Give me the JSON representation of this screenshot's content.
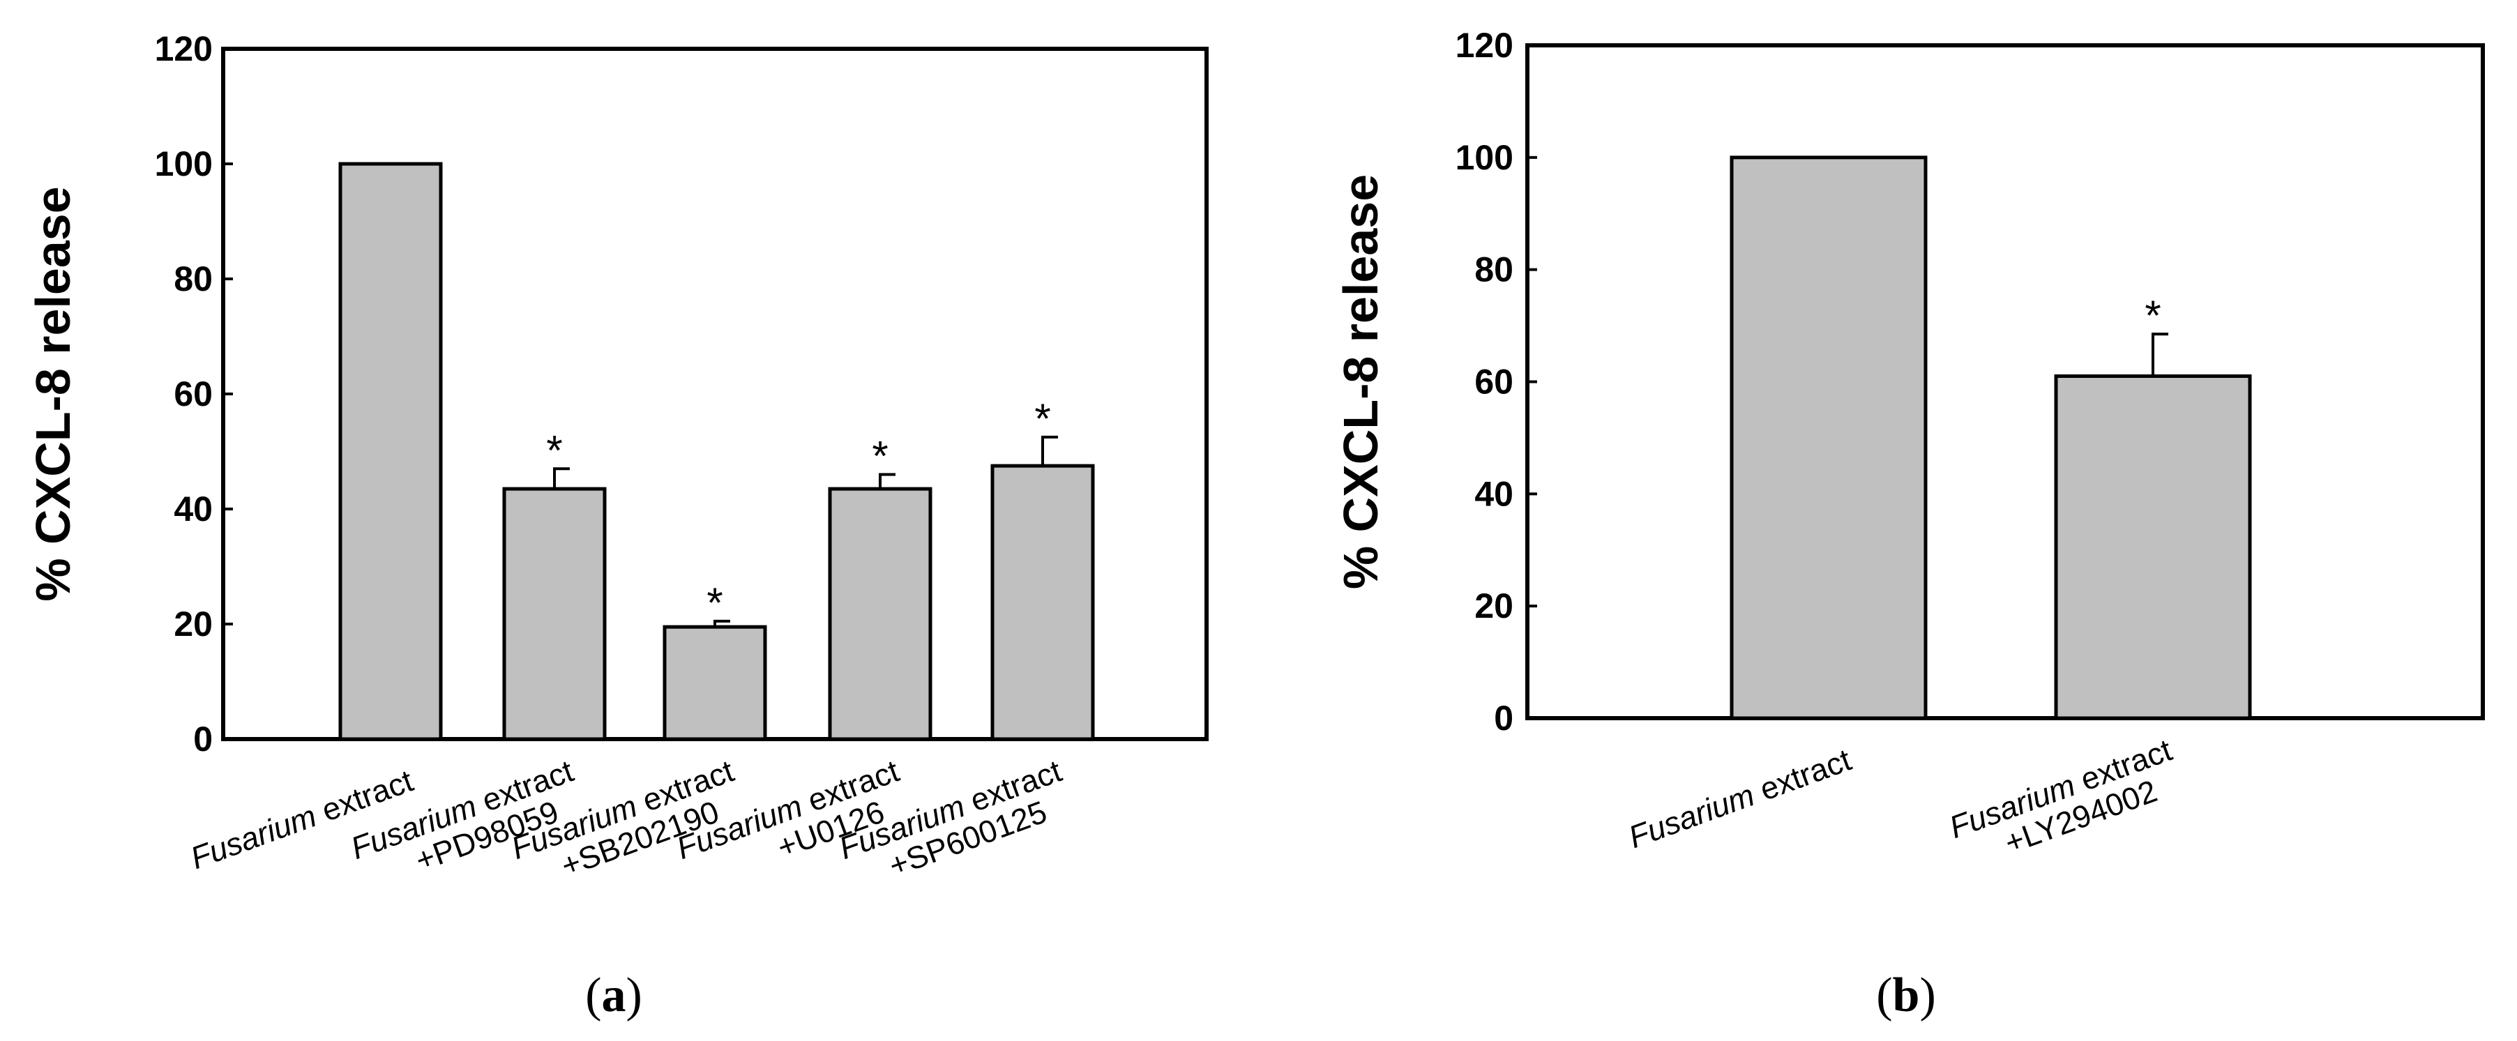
{
  "chart_data": [
    {
      "type": "bar",
      "panel_label": "(a)",
      "panel_letter": "a",
      "ylabel": "% CXCL-8 release",
      "ylim": [
        0,
        120
      ],
      "yticks": [
        0,
        20,
        40,
        60,
        80,
        100,
        120
      ],
      "categories": [
        {
          "italic": "Fusarium",
          "rest": " extract",
          "line2": ""
        },
        {
          "italic": "Fusarium",
          "rest": " extract",
          "line2": "+PD98059"
        },
        {
          "italic": "Fusarium",
          "rest": " extract",
          "line2": "+SB202190"
        },
        {
          "italic": "Fusarium",
          "rest": " extract",
          "line2": "+U0126"
        },
        {
          "italic": "Fusarium",
          "rest": " extract",
          "line2": "+SP600125"
        }
      ],
      "values": [
        100,
        43.5,
        19.5,
        43.5,
        47.5
      ],
      "errors": [
        0,
        3.5,
        1.0,
        2.5,
        5.0
      ],
      "significance": [
        "",
        "*",
        "*",
        "*",
        "*"
      ],
      "bar_color": "#c0c0c0",
      "grid": false
    },
    {
      "type": "bar",
      "panel_label": "(b)",
      "panel_letter": "b",
      "ylabel": "% CXCL-8 release",
      "ylim": [
        0,
        120
      ],
      "yticks": [
        0,
        20,
        40,
        60,
        80,
        100,
        120
      ],
      "categories": [
        {
          "italic": "Fusarium",
          "rest": " extract",
          "line2": ""
        },
        {
          "italic": "Fusarium",
          "rest": " extract",
          "line2": "+LY294002"
        }
      ],
      "values": [
        100,
        61
      ],
      "errors": [
        0,
        7.5
      ],
      "significance": [
        "",
        "*"
      ],
      "bar_color": "#c0c0c0",
      "grid": false
    }
  ]
}
